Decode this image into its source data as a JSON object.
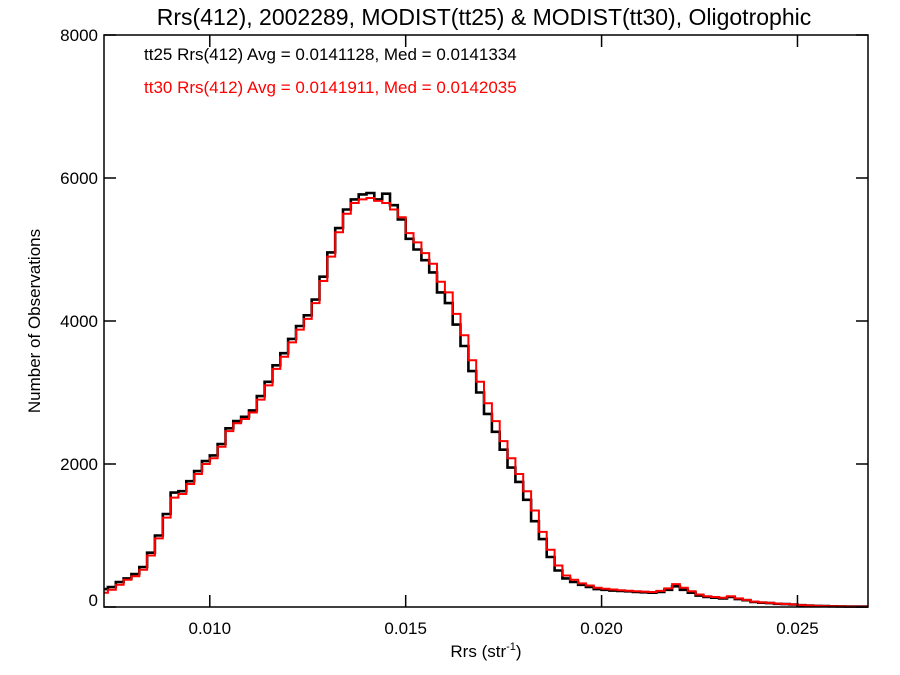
{
  "chart_data": {
    "type": "line",
    "title": "Rrs(412), 2002289, MODIST(tt25) & MODIST(tt30), Oligotrophic",
    "xlabel": "Rrs (str",
    "xlabel_sup": "-1",
    "xlabel_close": ")",
    "ylabel": "Number of Observations",
    "xlim": [
      0.0073,
      0.0268
    ],
    "ylim": [
      0,
      8000
    ],
    "xticks": [
      0.01,
      0.015,
      0.02,
      0.025
    ],
    "xtick_labels": [
      "0.010",
      "0.015",
      "0.020",
      "0.025"
    ],
    "yticks": [
      0,
      2000,
      4000,
      6000,
      8000
    ],
    "ytick_labels": [
      "0",
      "2000",
      "4000",
      "6000",
      "8000"
    ],
    "grid": false,
    "annotations": [
      {
        "text": "tt25 Rrs(412) Avg = 0.0141128, Med = 0.0141334",
        "color": "#000000"
      },
      {
        "text": "tt30 Rrs(412) Avg = 0.0141911, Med = 0.0142035",
        "color": "#ff0000"
      }
    ],
    "series": [
      {
        "color": "#000000",
        "x": [
          0.0073,
          0.0075,
          0.0077,
          0.0079,
          0.0081,
          0.0083,
          0.0085,
          0.0087,
          0.0089,
          0.0091,
          0.0093,
          0.0095,
          0.0097,
          0.0099,
          0.0101,
          0.0103,
          0.0105,
          0.0107,
          0.0109,
          0.0111,
          0.0113,
          0.0115,
          0.0117,
          0.0119,
          0.0121,
          0.0123,
          0.0125,
          0.0127,
          0.0129,
          0.0131,
          0.0133,
          0.0135,
          0.0137,
          0.0139,
          0.0141,
          0.0143,
          0.0145,
          0.0147,
          0.0149,
          0.0151,
          0.0153,
          0.0155,
          0.0157,
          0.0159,
          0.0161,
          0.0163,
          0.0165,
          0.0167,
          0.0169,
          0.0171,
          0.0173,
          0.0175,
          0.0177,
          0.0179,
          0.0181,
          0.0183,
          0.0185,
          0.0187,
          0.0189,
          0.0191,
          0.0193,
          0.0195,
          0.0197,
          0.0199,
          0.0201,
          0.0203,
          0.0205,
          0.0207,
          0.0209,
          0.0211,
          0.0213,
          0.0215,
          0.0217,
          0.0219,
          0.0221,
          0.0223,
          0.0225,
          0.0227,
          0.0229,
          0.0231,
          0.0233,
          0.0235,
          0.0237,
          0.0239,
          0.0241,
          0.0243,
          0.0245,
          0.0247,
          0.0249,
          0.0251,
          0.0253,
          0.0255,
          0.0257,
          0.0259,
          0.0261,
          0.0263,
          0.0265,
          0.0267
        ],
        "y": [
          250,
          280,
          350,
          400,
          460,
          560,
          760,
          1000,
          1300,
          1600,
          1620,
          1760,
          1900,
          2040,
          2120,
          2280,
          2500,
          2600,
          2660,
          2750,
          2950,
          3150,
          3380,
          3550,
          3750,
          3930,
          4080,
          4300,
          4620,
          4960,
          5300,
          5560,
          5700,
          5770,
          5790,
          5700,
          5780,
          5620,
          5420,
          5150,
          5000,
          4850,
          4680,
          4400,
          4250,
          3950,
          3650,
          3300,
          3000,
          2700,
          2450,
          2200,
          1950,
          1750,
          1500,
          1200,
          950,
          700,
          510,
          400,
          350,
          310,
          280,
          250,
          240,
          230,
          225,
          220,
          210,
          205,
          200,
          210,
          240,
          290,
          240,
          200,
          160,
          140,
          130,
          120,
          140,
          110,
          95,
          70,
          60,
          55,
          45,
          40,
          35,
          25,
          20,
          15,
          12,
          10,
          8,
          6,
          5,
          5
        ]
      },
      {
        "color": "#ff0000",
        "x": [
          0.0073,
          0.0075,
          0.0077,
          0.0079,
          0.0081,
          0.0083,
          0.0085,
          0.0087,
          0.0089,
          0.0091,
          0.0093,
          0.0095,
          0.0097,
          0.0099,
          0.0101,
          0.0103,
          0.0105,
          0.0107,
          0.0109,
          0.0111,
          0.0113,
          0.0115,
          0.0117,
          0.0119,
          0.0121,
          0.0123,
          0.0125,
          0.0127,
          0.0129,
          0.0131,
          0.0133,
          0.0135,
          0.0137,
          0.0139,
          0.0141,
          0.0143,
          0.0145,
          0.0147,
          0.0149,
          0.0151,
          0.0153,
          0.0155,
          0.0157,
          0.0159,
          0.0161,
          0.0163,
          0.0165,
          0.0167,
          0.0169,
          0.0171,
          0.0173,
          0.0175,
          0.0177,
          0.0179,
          0.0181,
          0.0183,
          0.0185,
          0.0187,
          0.0189,
          0.0191,
          0.0193,
          0.0195,
          0.0197,
          0.0199,
          0.0201,
          0.0203,
          0.0205,
          0.0207,
          0.0209,
          0.0211,
          0.0213,
          0.0215,
          0.0217,
          0.0219,
          0.0221,
          0.0223,
          0.0225,
          0.0227,
          0.0229,
          0.0231,
          0.0233,
          0.0235,
          0.0237,
          0.0239,
          0.0241,
          0.0243,
          0.0245,
          0.0247,
          0.0249,
          0.0251,
          0.0253,
          0.0255,
          0.0257,
          0.0259,
          0.0261,
          0.0263,
          0.0265,
          0.0267
        ],
        "y": [
          200,
          240,
          310,
          380,
          430,
          520,
          720,
          960,
          1250,
          1530,
          1580,
          1720,
          1860,
          2000,
          2080,
          2240,
          2460,
          2570,
          2630,
          2720,
          2900,
          3100,
          3330,
          3500,
          3700,
          3880,
          4030,
          4250,
          4560,
          4900,
          5240,
          5500,
          5650,
          5700,
          5720,
          5680,
          5650,
          5560,
          5450,
          5230,
          5100,
          4950,
          4800,
          4550,
          4400,
          4100,
          3800,
          3450,
          3150,
          2850,
          2600,
          2320,
          2080,
          1860,
          1620,
          1350,
          1050,
          800,
          580,
          440,
          380,
          330,
          300,
          270,
          255,
          245,
          235,
          228,
          220,
          215,
          210,
          225,
          260,
          320,
          270,
          220,
          175,
          150,
          140,
          130,
          150,
          120,
          100,
          75,
          65,
          58,
          48,
          42,
          36,
          27,
          21,
          16,
          12,
          10,
          8,
          6,
          5,
          5
        ]
      }
    ]
  }
}
